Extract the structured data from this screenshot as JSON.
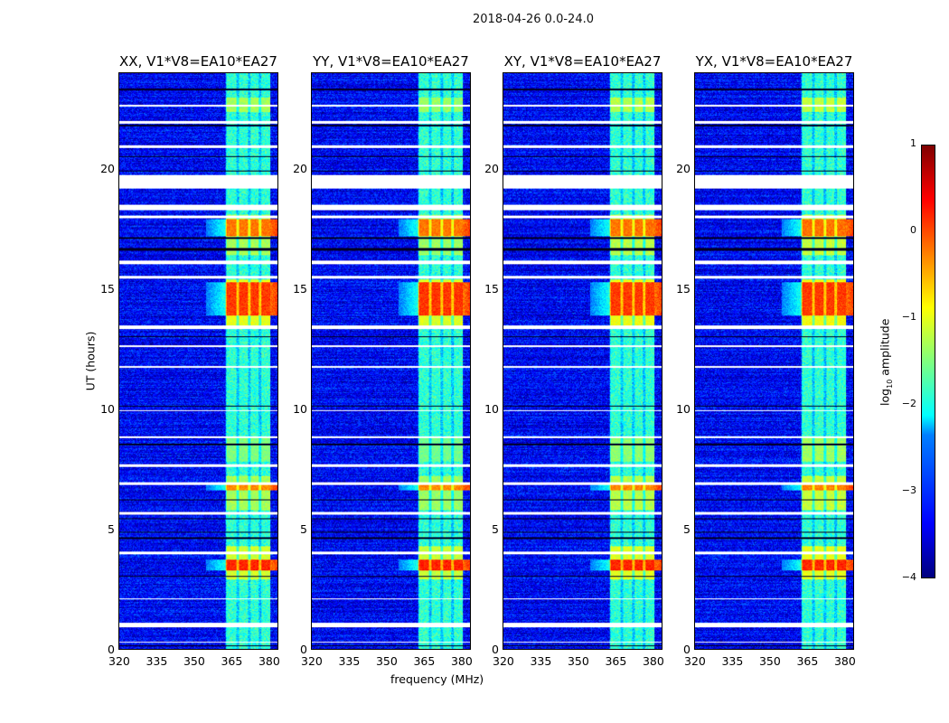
{
  "chart_data": {
    "type": "heatmap",
    "title": "2018-04-26 0.0-24.0",
    "panels": [
      {
        "title": "XX, V1*V8=EA10*EA27",
        "event_scale": 1.0
      },
      {
        "title": "YY, V1*V8=EA10*EA27",
        "event_scale": 1.05
      },
      {
        "title": "XY, V1*V8=EA10*EA27",
        "event_scale": 0.95
      },
      {
        "title": "YX, V1*V8=EA10*EA27",
        "event_scale": 0.9
      }
    ],
    "xlabel": "frequency (MHz)",
    "ylabel": "UT (hours)",
    "xlim": [
      320,
      384
    ],
    "ylim": [
      0,
      24
    ],
    "xticks": [
      "320",
      "335",
      "350",
      "365",
      "380"
    ],
    "xtick_values": [
      320,
      335,
      350,
      365,
      380
    ],
    "yticks": [
      "0",
      "5",
      "10",
      "15",
      "20"
    ],
    "ytick_values": [
      0,
      5,
      10,
      15,
      20
    ],
    "colorbar": {
      "label": "log10 amplitude",
      "label_main": "log",
      "label_sub": "10",
      "label_tail": " amplitude",
      "range": [
        -4,
        1
      ],
      "ticks": [
        "1",
        "0",
        "−1",
        "−2",
        "−3",
        "−4"
      ],
      "tick_values": [
        1,
        0,
        -1,
        -2,
        -3,
        -4
      ],
      "colormap": "jet"
    },
    "background_level": -3.4,
    "rfi_band_mhz": [
      363,
      381
    ],
    "rfi_channels_mhz": [
      [
        363.5,
        367.5
      ],
      [
        368.5,
        372
      ],
      [
        373,
        376.5
      ],
      [
        377.5,
        381
      ]
    ],
    "rfi_band_level": -1.9,
    "flagged_hours": [
      [
        19.2,
        19.75
      ],
      [
        18.3,
        18.5
      ],
      [
        16.05,
        16.2
      ],
      [
        13.35,
        13.5
      ],
      [
        11.7,
        11.8
      ],
      [
        7.6,
        7.7
      ],
      [
        6.85,
        6.95
      ],
      [
        5.6,
        5.7
      ],
      [
        3.95,
        4.05
      ],
      [
        2.05,
        2.1
      ],
      [
        0.9,
        1.1
      ],
      [
        0.25,
        0.3
      ],
      [
        21.9,
        22.0
      ],
      [
        22.6,
        22.7
      ],
      [
        20.9,
        21.0
      ],
      [
        17.95,
        18.05
      ],
      [
        15.45,
        15.55
      ],
      [
        12.6,
        12.65
      ],
      [
        8.8,
        8.85
      ],
      [
        9.9,
        9.95
      ]
    ],
    "dark_hours": [
      [
        23.3,
        23.35
      ],
      [
        21.8,
        21.85
      ],
      [
        20.5,
        20.55
      ],
      [
        19.9,
        19.95
      ],
      [
        17.1,
        17.15
      ],
      [
        16.6,
        16.7
      ],
      [
        13.0,
        13.05
      ],
      [
        10.1,
        10.15
      ],
      [
        8.5,
        8.55
      ],
      [
        6.2,
        6.25
      ],
      [
        5.4,
        5.45
      ],
      [
        4.85,
        4.9
      ],
      [
        4.6,
        4.65
      ],
      [
        3.0,
        3.05
      ],
      [
        0.1,
        0.15
      ]
    ],
    "events": [
      {
        "t": [
          3.25,
          3.7
        ],
        "level": 0.2
      },
      {
        "t": [
          2.9,
          4.3
        ],
        "level": -1.1
      },
      {
        "t": [
          13.9,
          15.3
        ],
        "level": 0.1
      },
      {
        "t": [
          13.5,
          15.4
        ],
        "level": -1.0
      },
      {
        "t": [
          17.2,
          17.9
        ],
        "level": -0.2
      },
      {
        "t": [
          16.4,
          18.1
        ],
        "level": -1.3
      },
      {
        "t": [
          6.6,
          6.95
        ],
        "level": -0.3
      },
      {
        "t": [
          5.8,
          7.2
        ],
        "level": -1.3
      },
      {
        "t": [
          7.8,
          8.8
        ],
        "level": -1.5
      },
      {
        "t": [
          22.4,
          23.0
        ],
        "level": -1.3
      }
    ]
  }
}
